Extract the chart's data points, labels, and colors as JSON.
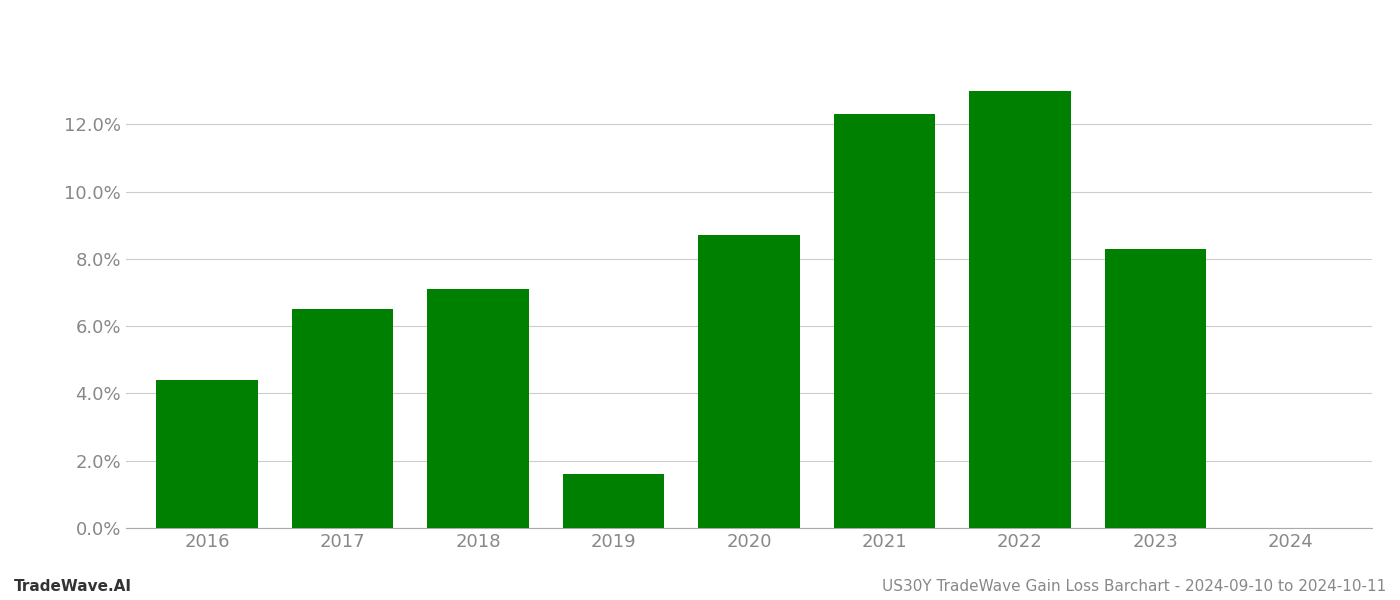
{
  "categories": [
    "2016",
    "2017",
    "2018",
    "2019",
    "2020",
    "2021",
    "2022",
    "2023",
    "2024"
  ],
  "values": [
    0.044,
    0.065,
    0.071,
    0.016,
    0.087,
    0.123,
    0.13,
    0.083,
    0.0
  ],
  "bar_color": "#008000",
  "background_color": "#ffffff",
  "grid_color": "#cccccc",
  "title": "US30Y TradeWave Gain Loss Barchart - 2024-09-10 to 2024-10-11",
  "footer_left": "TradeWave.AI",
  "ylim": [
    0,
    0.148
  ],
  "yticks": [
    0.0,
    0.02,
    0.04,
    0.06,
    0.08,
    0.1,
    0.12
  ],
  "tick_label_color": "#888888",
  "axis_color": "#aaaaaa",
  "title_color": "#888888",
  "footer_fontsize": 11,
  "title_fontsize": 11,
  "tick_fontsize": 13,
  "bar_width": 0.75
}
